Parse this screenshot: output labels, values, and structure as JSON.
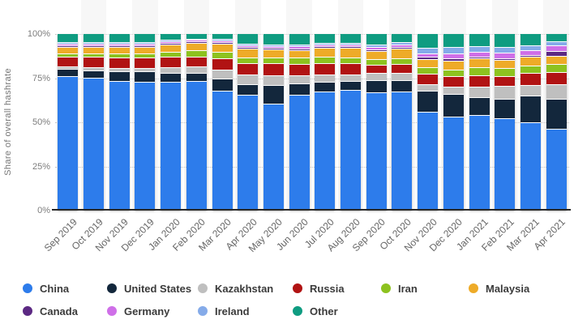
{
  "chart_data": {
    "type": "bar",
    "stacked": true,
    "title": "",
    "ylabel": "Share of overall hashrate",
    "xlabel": "",
    "ylim": [
      0,
      100
    ],
    "yticks": [
      "0%",
      "25%",
      "50%",
      "75%",
      "100%"
    ],
    "ytick_values": [
      0,
      25,
      50,
      75,
      100
    ],
    "grid": "dotted horizontal",
    "legend_position": "bottom",
    "categories": [
      "Sep 2019",
      "Oct 2019",
      "Nov 2019",
      "Dec 2019",
      "Jan 2020",
      "Feb 2020",
      "Mar 2020",
      "Apr 2020",
      "May 2020",
      "Jun 2020",
      "Jul 2020",
      "Aug 2020",
      "Sep 2020",
      "Oct 2020",
      "Nov 2020",
      "Dec 2020",
      "Jan 2021",
      "Feb 2021",
      "Mar 2021",
      "Apr 2021"
    ],
    "series": [
      {
        "name": "China",
        "color": "#2d7ceb",
        "values": [
          75.5,
          74.7,
          73.0,
          72.3,
          72.6,
          73.0,
          67.2,
          65.1,
          60.1,
          64.9,
          67.0,
          67.9,
          66.5,
          67.1,
          55.4,
          52.9,
          53.5,
          51.6,
          49.7,
          46.0
        ]
      },
      {
        "name": "United States",
        "color": "#13273c",
        "values": [
          4.1,
          4.4,
          5.5,
          5.9,
          5.0,
          4.5,
          7.0,
          5.8,
          10.3,
          6.8,
          5.5,
          4.8,
          6.9,
          6.5,
          11.9,
          12.9,
          10.1,
          11.3,
          15.1,
          16.9
        ]
      },
      {
        "name": "Kazakhstan",
        "color": "#bfbfbf",
        "values": [
          1.4,
          1.5,
          1.7,
          2.0,
          3.1,
          3.8,
          5.3,
          5.7,
          5.6,
          4.2,
          4.0,
          3.9,
          4.3,
          3.9,
          3.9,
          4.1,
          6.3,
          7.2,
          5.7,
          8.2
        ]
      },
      {
        "name": "Russia",
        "color": "#b11313",
        "values": [
          5.9,
          6.0,
          6.1,
          6.0,
          6.0,
          5.6,
          6.3,
          6.3,
          7.0,
          6.8,
          6.4,
          6.6,
          4.6,
          4.9,
          6.0,
          5.7,
          6.3,
          5.6,
          7.2,
          6.8
        ]
      },
      {
        "name": "Iran",
        "color": "#8dc21f",
        "values": [
          1.7,
          1.9,
          2.1,
          2.3,
          2.9,
          3.3,
          3.5,
          3.5,
          3.0,
          3.6,
          3.7,
          3.2,
          3.0,
          3.3,
          3.5,
          3.8,
          4.4,
          4.4,
          3.8,
          4.6
        ]
      },
      {
        "name": "Malaysia",
        "color": "#eeab28",
        "values": [
          3.4,
          3.7,
          3.7,
          3.7,
          4.1,
          4.2,
          4.7,
          4.7,
          4.6,
          4.0,
          5.0,
          5.2,
          4.6,
          5.5,
          4.8,
          5.1,
          5.0,
          4.7,
          5.0,
          4.6
        ]
      },
      {
        "name": "Canada",
        "color": "#5c2983",
        "values": [
          1.1,
          1.1,
          1.1,
          1.1,
          1.0,
          0.9,
          1.0,
          1.1,
          1.2,
          1.2,
          1.1,
          1.1,
          1.0,
          1.0,
          1.3,
          1.2,
          1.0,
          0.9,
          0.9,
          3.0
        ]
      },
      {
        "name": "Germany",
        "color": "#cf6fe8",
        "values": [
          0.9,
          0.9,
          0.9,
          0.9,
          0.8,
          0.8,
          0.9,
          0.9,
          1.0,
          1.0,
          1.0,
          1.0,
          1.3,
          1.2,
          1.6,
          2.8,
          2.9,
          3.2,
          2.9,
          2.8
        ]
      },
      {
        "name": "Ireland",
        "color": "#85abe9",
        "values": [
          0.9,
          0.9,
          0.9,
          0.9,
          0.8,
          0.8,
          0.9,
          0.9,
          1.0,
          1.0,
          1.0,
          1.0,
          1.6,
          1.5,
          3.5,
          3.8,
          3.2,
          3.2,
          2.9,
          2.3
        ]
      },
      {
        "name": "Other",
        "color": "#0f9c81",
        "values": [
          5.1,
          4.9,
          5.0,
          4.9,
          3.7,
          3.1,
          3.2,
          6.0,
          6.2,
          6.5,
          5.3,
          5.3,
          6.2,
          5.1,
          8.1,
          7.7,
          7.3,
          7.9,
          6.8,
          4.8
        ]
      }
    ]
  }
}
